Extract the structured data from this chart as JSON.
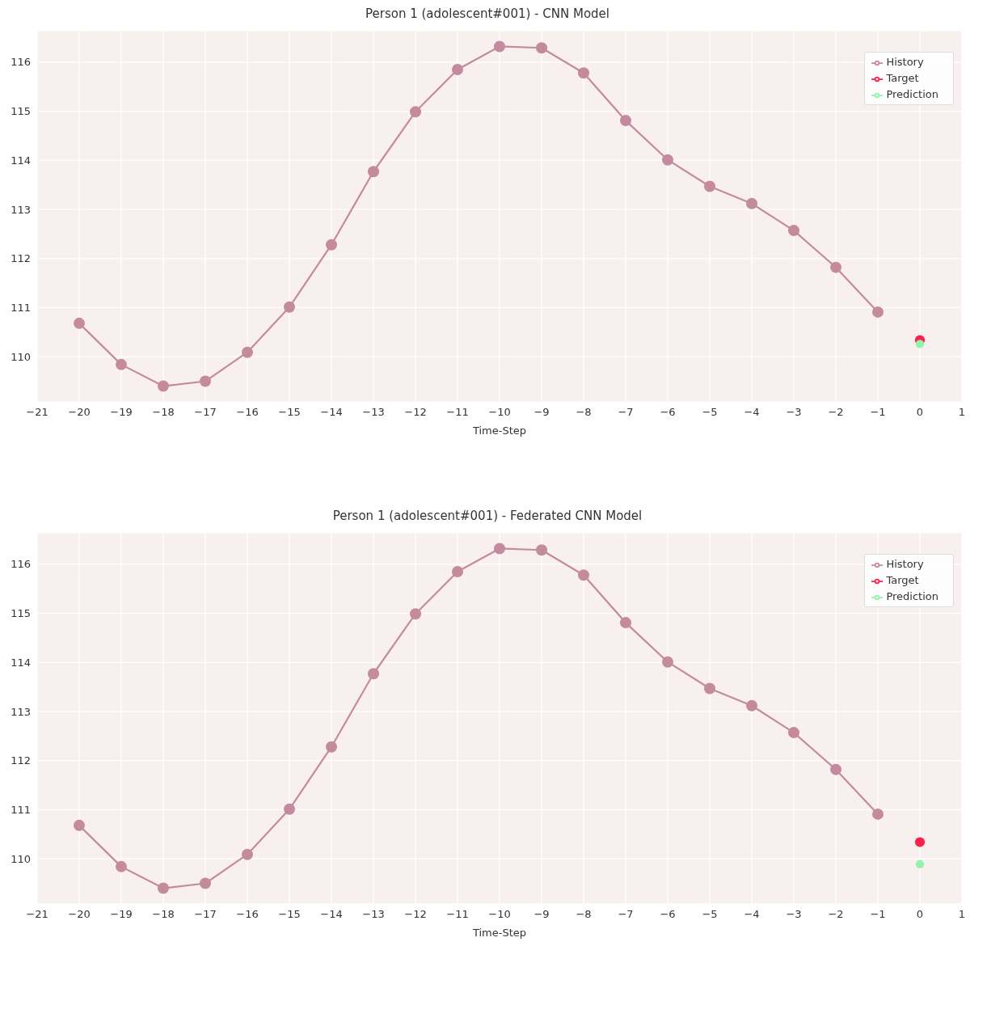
{
  "chart_data": [
    {
      "type": "line",
      "title": "Person 1 (adolescent#001) - CNN Model",
      "xlabel": "Time-Step",
      "xlim": [
        -21,
        1
      ],
      "xticks": [
        {
          "value": -21,
          "label": "−21"
        },
        {
          "value": -20,
          "label": "−20"
        },
        {
          "value": -19,
          "label": "−19"
        },
        {
          "value": -18,
          "label": "−18"
        },
        {
          "value": -17,
          "label": "−17"
        },
        {
          "value": -16,
          "label": "−16"
        },
        {
          "value": -15,
          "label": "−15"
        },
        {
          "value": -14,
          "label": "−14"
        },
        {
          "value": -13,
          "label": "−13"
        },
        {
          "value": -12,
          "label": "−12"
        },
        {
          "value": -11,
          "label": "−11"
        },
        {
          "value": -10,
          "label": "−10"
        },
        {
          "value": -9,
          "label": "−9"
        },
        {
          "value": -8,
          "label": "−8"
        },
        {
          "value": -7,
          "label": "−7"
        },
        {
          "value": -6,
          "label": "−6"
        },
        {
          "value": -5,
          "label": "−5"
        },
        {
          "value": -4,
          "label": "−4"
        },
        {
          "value": -3,
          "label": "−3"
        },
        {
          "value": -2,
          "label": "−2"
        },
        {
          "value": -1,
          "label": "−1"
        },
        {
          "value": 0,
          "label": "0"
        },
        {
          "value": 1,
          "label": "1"
        }
      ],
      "ylim": [
        109.08,
        116.64
      ],
      "yticks": [
        110,
        111,
        112,
        113,
        114,
        115,
        116
      ],
      "grid": true,
      "legend": "top right",
      "marker": "circle",
      "series": [
        {
          "name": "History",
          "color": "#c48a9e",
          "x": [
            -20,
            -19,
            -18,
            -17,
            -16,
            -15,
            -14,
            -13,
            -12,
            -11,
            -10,
            -9,
            -8,
            -7,
            -6,
            -5,
            -4,
            -3,
            -2,
            -1
          ],
          "values": [
            110.68,
            109.84,
            109.4,
            109.5,
            110.09,
            111.01,
            112.28,
            113.77,
            114.99,
            115.85,
            116.32,
            116.29,
            115.78,
            114.81,
            114.01,
            113.47,
            113.12,
            112.57,
            111.82,
            110.91
          ]
        },
        {
          "name": "Target",
          "color": "#ff1f4b",
          "x": [
            0
          ],
          "values": [
            110.34
          ]
        },
        {
          "name": "Prediction",
          "color": "#90f5a8",
          "x": [
            0
          ],
          "values": [
            110.26
          ]
        }
      ]
    },
    {
      "type": "line",
      "title": "Person 1 (adolescent#001) - Federated CNN Model",
      "xlabel": "Time-Step",
      "xlim": [
        -21,
        1
      ],
      "xticks": [
        {
          "value": -21,
          "label": "−21"
        },
        {
          "value": -20,
          "label": "−20"
        },
        {
          "value": -19,
          "label": "−19"
        },
        {
          "value": -18,
          "label": "−18"
        },
        {
          "value": -17,
          "label": "−17"
        },
        {
          "value": -16,
          "label": "−16"
        },
        {
          "value": -15,
          "label": "−15"
        },
        {
          "value": -14,
          "label": "−14"
        },
        {
          "value": -13,
          "label": "−13"
        },
        {
          "value": -12,
          "label": "−12"
        },
        {
          "value": -11,
          "label": "−11"
        },
        {
          "value": -10,
          "label": "−10"
        },
        {
          "value": -9,
          "label": "−9"
        },
        {
          "value": -8,
          "label": "−8"
        },
        {
          "value": -7,
          "label": "−7"
        },
        {
          "value": -6,
          "label": "−6"
        },
        {
          "value": -5,
          "label": "−5"
        },
        {
          "value": -4,
          "label": "−4"
        },
        {
          "value": -3,
          "label": "−3"
        },
        {
          "value": -2,
          "label": "−2"
        },
        {
          "value": -1,
          "label": "−1"
        },
        {
          "value": 0,
          "label": "0"
        },
        {
          "value": 1,
          "label": "1"
        }
      ],
      "ylim": [
        109.08,
        116.64
      ],
      "yticks": [
        110,
        111,
        112,
        113,
        114,
        115,
        116
      ],
      "grid": true,
      "legend": "top right",
      "marker": "circle",
      "series": [
        {
          "name": "History",
          "color": "#c48a9e",
          "x": [
            -20,
            -19,
            -18,
            -17,
            -16,
            -15,
            -14,
            -13,
            -12,
            -11,
            -10,
            -9,
            -8,
            -7,
            -6,
            -5,
            -4,
            -3,
            -2,
            -1
          ],
          "values": [
            110.68,
            109.84,
            109.4,
            109.5,
            110.09,
            111.01,
            112.28,
            113.77,
            114.99,
            115.85,
            116.32,
            116.29,
            115.78,
            114.81,
            114.01,
            113.47,
            113.12,
            112.57,
            111.82,
            110.91
          ]
        },
        {
          "name": "Target",
          "color": "#ff1f4b",
          "x": [
            0
          ],
          "values": [
            110.34
          ]
        },
        {
          "name": "Prediction",
          "color": "#90f5a8",
          "x": [
            0
          ],
          "values": [
            109.89
          ]
        }
      ]
    }
  ]
}
